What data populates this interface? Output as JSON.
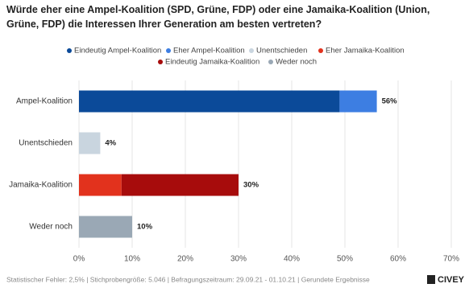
{
  "chart_data": {
    "type": "stacked-bar-horizontal",
    "title": "Würde eher eine Ampel-Koalition (SPD, Grüne, FDP) oder eine Jamaika-Koalition (Union, Grüne, FDP) die Interessen Ihrer Generation am besten vertreten?",
    "categories": [
      "Ampel-Koalition",
      "Unentschieden",
      "Jamaika-Koalition",
      "Weder noch"
    ],
    "series": [
      {
        "name": "Eindeutig Ampel-Koalition",
        "color": "#0b4a99",
        "values": [
          49,
          null,
          null,
          null
        ]
      },
      {
        "name": "Eher Ampel-Koalition",
        "color": "#3d7ee2",
        "values": [
          7,
          null,
          null,
          null
        ]
      },
      {
        "name": "Unentschieden",
        "color": "#c9d5df",
        "values": [
          null,
          4,
          null,
          null
        ]
      },
      {
        "name": "Eher Jamaika-Koalition",
        "color": "#e2321d",
        "values": [
          null,
          null,
          8,
          null
        ]
      },
      {
        "name": "Eindeutig Jamaika-Koalition",
        "color": "#a70c0c",
        "values": [
          null,
          null,
          22,
          null
        ]
      },
      {
        "name": "Weder noch",
        "color": "#9aa8b5",
        "values": [
          null,
          null,
          null,
          10
        ]
      }
    ],
    "totals": [
      56,
      4,
      30,
      10
    ],
    "total_labels": [
      "56%",
      "4%",
      "30%",
      "10%"
    ],
    "xlim": [
      0,
      70
    ],
    "xticks": [
      {
        "value": 0,
        "label": "0%"
      },
      {
        "value": 10,
        "label": "10%"
      },
      {
        "value": 20,
        "label": "20%"
      },
      {
        "value": 30,
        "label": "30%"
      },
      {
        "value": 40,
        "label": "40%"
      },
      {
        "value": 50,
        "label": "50%"
      },
      {
        "value": 60,
        "label": "60%"
      },
      {
        "value": 70,
        "label": "70%"
      }
    ],
    "grid": true,
    "footnote": "Statistischer Fehler: 2,5% | Stichprobengröße: 5.046 | Befragungszeitraum: 29.09.21 - 01.10.21 | Gerundete Ergebnisse",
    "brand": "CIVEY"
  }
}
